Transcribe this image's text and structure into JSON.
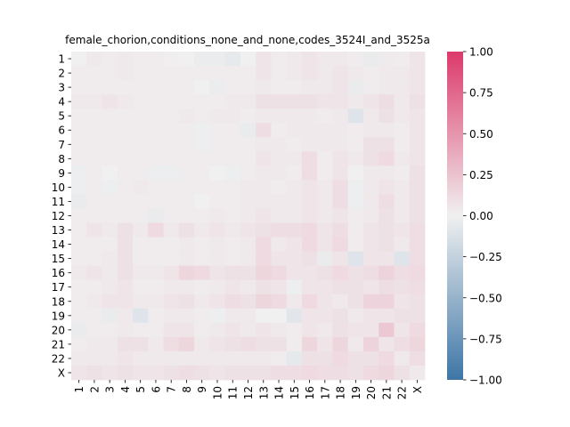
{
  "chart_data": {
    "type": "heatmap",
    "title": "female_chorion,conditions_none_and_none,codes_3524I_and_3525a",
    "xlabel": "",
    "ylabel": "",
    "labels": [
      "1",
      "2",
      "3",
      "4",
      "5",
      "6",
      "7",
      "8",
      "9",
      "10",
      "11",
      "12",
      "13",
      "14",
      "15",
      "16",
      "17",
      "18",
      "19",
      "20",
      "21",
      "22",
      "X"
    ],
    "vmin": -1.0,
    "vmax": 1.0,
    "colormap": "diverging blue-white-pink",
    "colors": {
      "negative": "#3d76a6",
      "center": "#f0f0f0",
      "positive": "#dc3a6b"
    },
    "colorbar": {
      "ticks": [
        1.0,
        0.75,
        0.5,
        0.25,
        0.0,
        -0.25,
        -0.5,
        -0.75,
        -1.0
      ],
      "tick_labels": [
        "1.00",
        "0.75",
        "0.50",
        "0.25",
        "0.00",
        "−0.25",
        "−0.50",
        "−0.75",
        "−1.00"
      ]
    },
    "matrix": [
      [
        0.0,
        0.04,
        0.02,
        0.04,
        0.02,
        0.02,
        0.01,
        0.0,
        -0.03,
        -0.03,
        -0.05,
        0.0,
        0.06,
        0.02,
        0.04,
        0.06,
        0.04,
        0.04,
        0.02,
        -0.04,
        0.03,
        0.02,
        0.06
      ],
      [
        0.02,
        0.02,
        0.02,
        0.04,
        0.02,
        0.02,
        0.02,
        0.02,
        0.02,
        0.02,
        0.02,
        0.02,
        0.06,
        0.02,
        0.04,
        0.06,
        0.04,
        0.06,
        0.04,
        0.02,
        0.04,
        0.04,
        0.06
      ],
      [
        0.02,
        0.02,
        0.02,
        0.02,
        0.02,
        0.02,
        0.02,
        0.02,
        0.0,
        -0.03,
        0.02,
        0.02,
        0.04,
        0.02,
        0.02,
        0.04,
        0.04,
        0.06,
        -0.04,
        0.02,
        0.04,
        0.04,
        0.06
      ],
      [
        0.04,
        0.04,
        0.06,
        0.04,
        0.02,
        0.02,
        0.02,
        0.02,
        0.02,
        0.02,
        0.04,
        0.04,
        0.08,
        0.08,
        0.08,
        0.08,
        0.06,
        0.06,
        0.04,
        0.06,
        0.1,
        0.04,
        0.08
      ],
      [
        0.02,
        0.02,
        0.02,
        0.02,
        0.02,
        0.02,
        0.02,
        0.04,
        0.02,
        0.04,
        0.04,
        0.02,
        0.04,
        0.04,
        0.04,
        0.04,
        0.02,
        0.04,
        -0.1,
        0.04,
        0.08,
        0.04,
        0.06
      ],
      [
        0.02,
        0.02,
        0.02,
        0.02,
        0.02,
        0.02,
        0.02,
        0.02,
        -0.02,
        0.02,
        0.02,
        -0.04,
        0.1,
        0.02,
        0.04,
        0.04,
        0.04,
        0.04,
        0.02,
        0.04,
        0.04,
        0.02,
        0.06
      ],
      [
        0.02,
        0.02,
        0.02,
        0.02,
        0.02,
        0.02,
        0.02,
        0.02,
        -0.02,
        0.02,
        0.02,
        0.02,
        0.04,
        0.04,
        0.02,
        0.04,
        0.04,
        0.04,
        0.02,
        0.08,
        0.08,
        0.02,
        0.06
      ],
      [
        0.02,
        0.02,
        0.02,
        0.02,
        0.02,
        0.02,
        0.02,
        0.02,
        0.02,
        0.02,
        0.02,
        0.02,
        0.06,
        0.04,
        0.04,
        0.1,
        0.02,
        0.06,
        0.04,
        0.08,
        0.12,
        0.04,
        0.06
      ],
      [
        -0.02,
        0.02,
        0.0,
        0.02,
        0.02,
        -0.02,
        -0.02,
        0.02,
        0.02,
        0.0,
        -0.02,
        0.02,
        0.04,
        0.04,
        0.02,
        0.1,
        0.02,
        0.06,
        0.0,
        0.04,
        0.04,
        0.02,
        0.08
      ],
      [
        -0.02,
        0.02,
        -0.02,
        0.02,
        0.04,
        0.02,
        0.02,
        0.02,
        0.02,
        0.02,
        0.02,
        0.04,
        0.04,
        0.02,
        0.04,
        0.06,
        0.04,
        0.1,
        -0.02,
        0.04,
        0.06,
        0.04,
        0.08
      ],
      [
        -0.04,
        0.02,
        0.02,
        0.02,
        0.02,
        0.02,
        0.02,
        0.02,
        0.0,
        0.02,
        0.02,
        0.04,
        0.04,
        0.04,
        0.04,
        0.06,
        0.04,
        0.1,
        -0.02,
        0.04,
        0.1,
        0.04,
        0.08
      ],
      [
        0.02,
        0.02,
        0.02,
        0.02,
        0.02,
        -0.04,
        0.02,
        0.02,
        0.02,
        0.04,
        0.02,
        0.04,
        0.06,
        0.04,
        0.04,
        0.06,
        0.04,
        0.06,
        0.02,
        0.04,
        0.08,
        0.04,
        0.08
      ],
      [
        0.02,
        0.06,
        0.04,
        0.08,
        0.04,
        0.12,
        0.04,
        0.08,
        0.04,
        0.06,
        0.04,
        0.06,
        0.08,
        0.1,
        0.1,
        0.12,
        0.06,
        0.1,
        0.02,
        0.06,
        0.08,
        0.06,
        0.1
      ],
      [
        0.02,
        0.02,
        0.02,
        0.08,
        0.02,
        0.02,
        0.02,
        0.04,
        0.02,
        0.04,
        0.02,
        0.04,
        0.12,
        0.04,
        0.06,
        0.12,
        0.06,
        0.12,
        0.02,
        0.06,
        0.08,
        0.04,
        0.1
      ],
      [
        0.02,
        0.02,
        0.04,
        0.08,
        0.02,
        0.02,
        0.02,
        0.04,
        0.02,
        0.04,
        0.02,
        0.04,
        0.12,
        0.06,
        0.06,
        0.08,
        -0.04,
        0.06,
        -0.1,
        0.06,
        0.06,
        -0.1,
        0.1
      ],
      [
        0.04,
        0.06,
        0.04,
        0.08,
        0.04,
        0.04,
        0.06,
        0.14,
        0.12,
        0.06,
        0.08,
        0.08,
        0.14,
        0.12,
        0.06,
        0.06,
        0.08,
        0.12,
        0.08,
        0.1,
        0.16,
        0.1,
        0.12
      ],
      [
        0.02,
        0.02,
        0.04,
        0.06,
        0.02,
        0.02,
        0.04,
        0.04,
        0.02,
        0.04,
        0.06,
        0.04,
        0.08,
        0.06,
        -0.02,
        0.06,
        0.06,
        0.08,
        0.08,
        0.06,
        0.1,
        0.08,
        0.1
      ],
      [
        0.02,
        0.04,
        0.06,
        0.06,
        0.04,
        0.04,
        0.06,
        0.08,
        0.04,
        0.06,
        0.1,
        0.08,
        0.14,
        0.12,
        0.04,
        0.12,
        0.06,
        0.04,
        0.08,
        0.16,
        0.16,
        0.06,
        0.08
      ],
      [
        0.02,
        0.02,
        -0.04,
        0.04,
        -0.1,
        0.02,
        0.04,
        0.04,
        0.02,
        -0.02,
        0.04,
        0.04,
        0.0,
        0.0,
        -0.08,
        0.06,
        0.06,
        0.08,
        0.04,
        0.06,
        0.06,
        0.08,
        0.08
      ],
      [
        -0.04,
        0.02,
        0.02,
        0.04,
        0.02,
        0.02,
        0.06,
        0.06,
        0.02,
        0.04,
        0.06,
        0.04,
        0.06,
        0.04,
        0.02,
        0.06,
        0.04,
        0.08,
        0.06,
        0.06,
        0.22,
        0.06,
        0.12
      ],
      [
        0.02,
        0.04,
        0.04,
        0.08,
        0.08,
        0.04,
        0.1,
        0.14,
        0.04,
        0.06,
        0.08,
        0.1,
        0.08,
        0.08,
        0.02,
        0.14,
        0.06,
        0.14,
        0.04,
        0.16,
        0.06,
        0.1,
        0.14
      ],
      [
        0.04,
        0.04,
        0.04,
        0.06,
        0.04,
        0.04,
        0.04,
        0.04,
        0.04,
        0.04,
        0.04,
        0.04,
        0.04,
        0.02,
        -0.06,
        0.08,
        0.08,
        0.12,
        0.08,
        0.08,
        0.12,
        0.04,
        0.1
      ],
      [
        0.06,
        0.08,
        0.06,
        0.08,
        0.06,
        0.06,
        0.08,
        0.1,
        0.08,
        0.06,
        0.08,
        0.08,
        0.08,
        0.1,
        0.1,
        0.12,
        0.1,
        0.1,
        0.08,
        0.12,
        0.14,
        0.08,
        0.04
      ]
    ]
  }
}
